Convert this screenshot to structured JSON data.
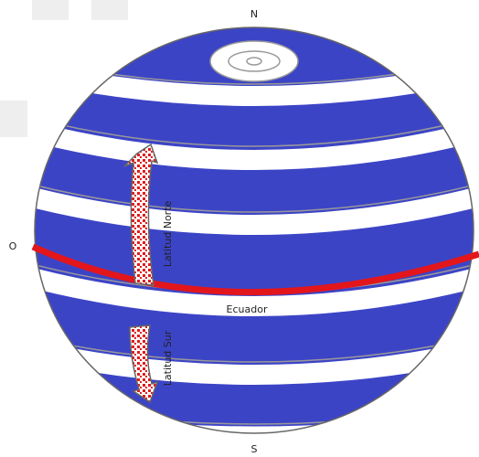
{
  "labels": {
    "north": "N",
    "south": "S",
    "west": "O",
    "equator": "Ecuador",
    "north_latitude": "Latitud Norte",
    "south_latitude": "Latitud Sur"
  }
}
